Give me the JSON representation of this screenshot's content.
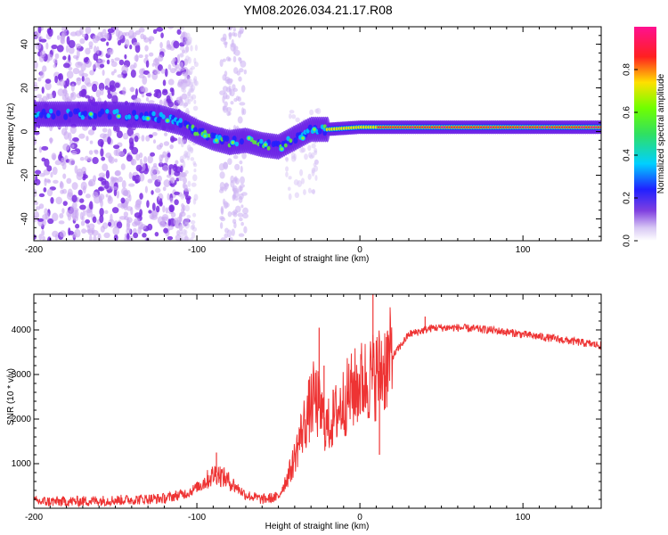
{
  "title": "YM08.2026.034.21.17.R08",
  "chart_data": [
    {
      "type": "heatmap",
      "name": "spectrogram",
      "xlabel": "Height of straight line (km)",
      "ylabel": "Frequency (Hz)",
      "xlim": [
        -200,
        148
      ],
      "ylim": [
        -50,
        48
      ],
      "xticks": [
        -200,
        -100,
        0,
        100
      ],
      "xtick_labels": [
        "-200",
        "-100",
        "0",
        "100"
      ],
      "yticks": [
        -40,
        -20,
        0,
        20,
        40
      ],
      "ytick_labels": [
        "-40",
        "-20",
        "0",
        "20",
        "40"
      ],
      "ridge": [
        {
          "x": -200,
          "f": 8
        },
        {
          "x": -175,
          "f": 8
        },
        {
          "x": -150,
          "f": 8
        },
        {
          "x": -125,
          "f": 7
        },
        {
          "x": -110,
          "f": 4
        },
        {
          "x": -100,
          "f": 0
        },
        {
          "x": -90,
          "f": -3
        },
        {
          "x": -80,
          "f": -5
        },
        {
          "x": -70,
          "f": -4
        },
        {
          "x": -60,
          "f": -6
        },
        {
          "x": -50,
          "f": -7
        },
        {
          "x": -40,
          "f": -3
        },
        {
          "x": -30,
          "f": 1
        },
        {
          "x": -20,
          "f": 1
        },
        {
          "x": 0,
          "f": 2
        },
        {
          "x": 50,
          "f": 2
        },
        {
          "x": 100,
          "f": 2
        },
        {
          "x": 148,
          "f": 2
        }
      ],
      "colorbar": {
        "label": "Normalized spectral amplitude",
        "range": [
          0,
          1
        ],
        "ticks": [
          0.0,
          0.2,
          0.4,
          0.6,
          0.8
        ],
        "tick_labels": [
          "0.0",
          "0.2",
          "0.4",
          "0.6",
          "0.8"
        ]
      }
    },
    {
      "type": "line",
      "name": "snr",
      "xlabel": "Height of straight line (km)",
      "ylabel": "SNR (10 * v/v)",
      "xlim": [
        -200,
        148
      ],
      "ylim": [
        0,
        4800
      ],
      "xticks": [
        -200,
        -100,
        0,
        100
      ],
      "xtick_labels": [
        "-200",
        "-100",
        "0",
        "100"
      ],
      "yticks": [
        1000,
        2000,
        3000,
        4000
      ],
      "ytick_labels": [
        "1000",
        "2000",
        "3000",
        "4000"
      ],
      "series": [
        {
          "name": "SNR",
          "color": "#ee3333",
          "envelope": [
            {
              "x": -200,
              "y": 150
            },
            {
              "x": -180,
              "y": 150
            },
            {
              "x": -150,
              "y": 180
            },
            {
              "x": -120,
              "y": 220
            },
            {
              "x": -105,
              "y": 350
            },
            {
              "x": -95,
              "y": 600
            },
            {
              "x": -88,
              "y": 800
            },
            {
              "x": -80,
              "y": 600
            },
            {
              "x": -70,
              "y": 300
            },
            {
              "x": -60,
              "y": 200
            },
            {
              "x": -50,
              "y": 250
            },
            {
              "x": -42,
              "y": 900
            },
            {
              "x": -35,
              "y": 1800
            },
            {
              "x": -28,
              "y": 2500
            },
            {
              "x": -20,
              "y": 1800
            },
            {
              "x": -15,
              "y": 2100
            },
            {
              "x": -8,
              "y": 2500
            },
            {
              "x": 0,
              "y": 2800
            },
            {
              "x": 10,
              "y": 3000
            },
            {
              "x": 20,
              "y": 3400
            },
            {
              "x": 30,
              "y": 3900
            },
            {
              "x": 45,
              "y": 4050
            },
            {
              "x": 60,
              "y": 4050
            },
            {
              "x": 80,
              "y": 4000
            },
            {
              "x": 100,
              "y": 3900
            },
            {
              "x": 120,
              "y": 3800
            },
            {
              "x": 148,
              "y": 3650
            }
          ],
          "spikes": [
            {
              "x": -88,
              "y": 1250
            },
            {
              "x": -25,
              "y": 4050
            },
            {
              "x": -22,
              "y": 3200
            },
            {
              "x": 8,
              "y": 4800
            },
            {
              "x": 12,
              "y": 1200
            },
            {
              "x": 40,
              "y": 4300
            }
          ]
        }
      ]
    }
  ]
}
